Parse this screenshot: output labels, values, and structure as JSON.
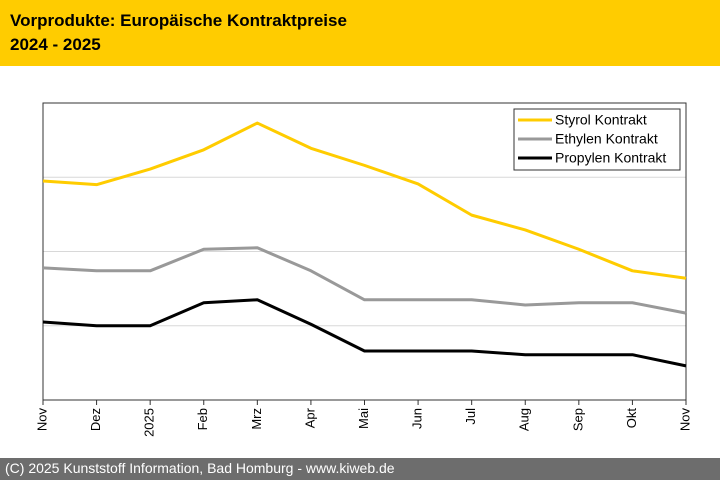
{
  "chart_data": {
    "type": "line",
    "title": "Vorprodukte: Europäische Kontraktpreise",
    "subtitle": "2024 - 2025",
    "footer": "(C) 2025 Kunststoff Information, Bad Homburg - www.kiweb.de",
    "categories": [
      "Nov",
      "Dez",
      "2025",
      "Feb",
      "Mrz",
      "Apr",
      "Mai",
      "Jun",
      "Jul",
      "Aug",
      "Sep",
      "Okt",
      "Nov"
    ],
    "series": [
      {
        "name": "Styrol Kontrakt",
        "color": "#ffcc00",
        "values": [
          2.95,
          2.9,
          3.11,
          3.37,
          3.73,
          3.39,
          3.16,
          2.91,
          2.49,
          2.29,
          2.03,
          1.74,
          1.64
        ]
      },
      {
        "name": "Ethylen Kontrakt",
        "color": "#999999",
        "values": [
          1.78,
          1.74,
          1.74,
          2.03,
          2.05,
          1.74,
          1.35,
          1.35,
          1.35,
          1.28,
          1.31,
          1.31,
          1.17
        ]
      },
      {
        "name": "Propylen Kontrakt",
        "color": "#000000",
        "values": [
          1.05,
          1.0,
          1.0,
          1.31,
          1.35,
          1.02,
          0.66,
          0.66,
          0.66,
          0.61,
          0.61,
          0.61,
          0.46
        ]
      }
    ],
    "ylim": [
      0,
      4
    ],
    "yticks": [
      1,
      2,
      3
    ],
    "grid": true,
    "legend": "top-right"
  }
}
